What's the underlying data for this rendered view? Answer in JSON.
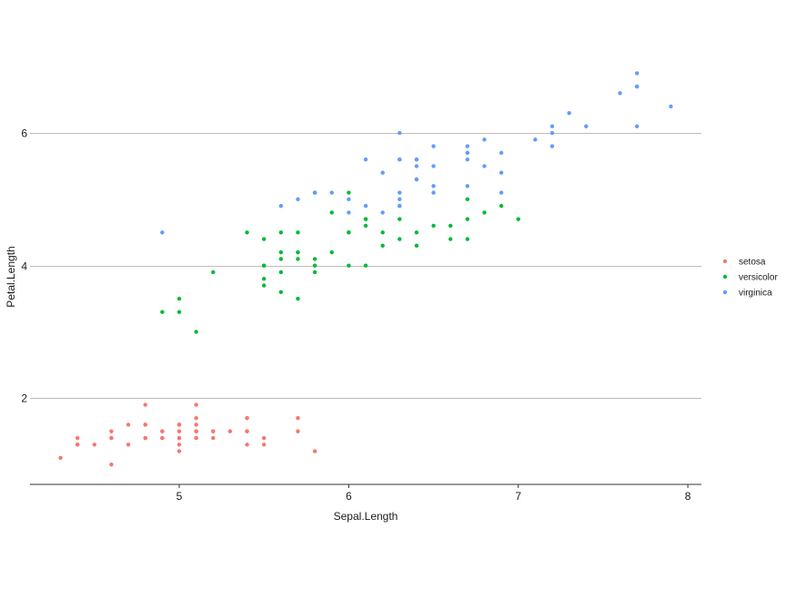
{
  "chart_data": {
    "type": "scatter",
    "xlabel": "Sepal.Length",
    "ylabel": "Petal.Length",
    "xlim": [
      4.12,
      8.08
    ],
    "ylim": [
      0.7,
      7.25
    ],
    "xticks": [
      5,
      6,
      7,
      8
    ],
    "yticks": [
      2,
      4,
      6
    ],
    "grid": "horizontal-major",
    "legend_position": "right",
    "series": [
      {
        "name": "setosa",
        "color": "#F8766D",
        "points": [
          [
            5.1,
            1.4
          ],
          [
            4.9,
            1.4
          ],
          [
            4.7,
            1.3
          ],
          [
            4.6,
            1.5
          ],
          [
            5.0,
            1.4
          ],
          [
            5.4,
            1.7
          ],
          [
            4.6,
            1.4
          ],
          [
            5.0,
            1.5
          ],
          [
            4.4,
            1.4
          ],
          [
            4.9,
            1.5
          ],
          [
            5.4,
            1.5
          ],
          [
            4.8,
            1.6
          ],
          [
            4.8,
            1.4
          ],
          [
            4.3,
            1.1
          ],
          [
            5.8,
            1.2
          ],
          [
            5.7,
            1.5
          ],
          [
            5.4,
            1.3
          ],
          [
            5.1,
            1.4
          ],
          [
            5.7,
            1.7
          ],
          [
            5.1,
            1.5
          ],
          [
            5.4,
            1.7
          ],
          [
            5.1,
            1.5
          ],
          [
            4.6,
            1.0
          ],
          [
            5.1,
            1.7
          ],
          [
            4.8,
            1.9
          ],
          [
            5.0,
            1.6
          ],
          [
            5.0,
            1.6
          ],
          [
            5.2,
            1.5
          ],
          [
            5.2,
            1.4
          ],
          [
            4.7,
            1.6
          ],
          [
            4.8,
            1.6
          ],
          [
            5.4,
            1.5
          ],
          [
            5.2,
            1.5
          ],
          [
            5.5,
            1.4
          ],
          [
            4.9,
            1.5
          ],
          [
            5.0,
            1.2
          ],
          [
            5.5,
            1.3
          ],
          [
            4.9,
            1.4
          ],
          [
            4.4,
            1.3
          ],
          [
            5.1,
            1.5
          ],
          [
            5.0,
            1.3
          ],
          [
            4.5,
            1.3
          ],
          [
            4.4,
            1.3
          ],
          [
            5.0,
            1.6
          ],
          [
            5.1,
            1.9
          ],
          [
            4.8,
            1.4
          ],
          [
            5.1,
            1.6
          ],
          [
            4.6,
            1.4
          ],
          [
            5.3,
            1.5
          ],
          [
            5.0,
            1.4
          ]
        ]
      },
      {
        "name": "versicolor",
        "color": "#00BA38",
        "points": [
          [
            7.0,
            4.7
          ],
          [
            6.4,
            4.5
          ],
          [
            6.9,
            4.9
          ],
          [
            5.5,
            4.0
          ],
          [
            6.5,
            4.6
          ],
          [
            5.7,
            4.5
          ],
          [
            6.3,
            4.7
          ],
          [
            4.9,
            3.3
          ],
          [
            6.6,
            4.6
          ],
          [
            5.2,
            3.9
          ],
          [
            5.0,
            3.5
          ],
          [
            5.9,
            4.2
          ],
          [
            6.0,
            4.0
          ],
          [
            6.1,
            4.7
          ],
          [
            5.6,
            3.6
          ],
          [
            6.7,
            4.4
          ],
          [
            5.6,
            4.5
          ],
          [
            5.8,
            4.1
          ],
          [
            6.2,
            4.5
          ],
          [
            5.6,
            3.9
          ],
          [
            5.9,
            4.8
          ],
          [
            6.1,
            4.0
          ],
          [
            6.3,
            4.9
          ],
          [
            6.1,
            4.7
          ],
          [
            6.4,
            4.3
          ],
          [
            6.6,
            4.4
          ],
          [
            6.8,
            4.8
          ],
          [
            6.7,
            5.0
          ],
          [
            6.0,
            4.5
          ],
          [
            5.7,
            3.5
          ],
          [
            5.5,
            3.8
          ],
          [
            5.5,
            3.7
          ],
          [
            5.8,
            3.9
          ],
          [
            6.0,
            5.1
          ],
          [
            5.4,
            4.5
          ],
          [
            6.0,
            4.5
          ],
          [
            6.7,
            4.7
          ],
          [
            6.3,
            4.4
          ],
          [
            5.6,
            4.1
          ],
          [
            5.5,
            4.0
          ],
          [
            5.5,
            4.4
          ],
          [
            6.1,
            4.6
          ],
          [
            5.8,
            4.0
          ],
          [
            5.0,
            3.3
          ],
          [
            5.6,
            4.2
          ],
          [
            5.7,
            4.2
          ],
          [
            5.7,
            4.2
          ],
          [
            6.2,
            4.3
          ],
          [
            5.1,
            3.0
          ],
          [
            5.7,
            4.1
          ]
        ]
      },
      {
        "name": "virginica",
        "color": "#619CFF",
        "points": [
          [
            6.3,
            6.0
          ],
          [
            5.8,
            5.1
          ],
          [
            7.1,
            5.9
          ],
          [
            6.3,
            5.6
          ],
          [
            6.5,
            5.8
          ],
          [
            7.6,
            6.6
          ],
          [
            4.9,
            4.5
          ],
          [
            7.3,
            6.3
          ],
          [
            6.7,
            5.8
          ],
          [
            7.2,
            6.1
          ],
          [
            6.5,
            5.1
          ],
          [
            6.4,
            5.3
          ],
          [
            6.8,
            5.5
          ],
          [
            5.7,
            5.0
          ],
          [
            5.8,
            5.1
          ],
          [
            6.4,
            5.3
          ],
          [
            6.5,
            5.5
          ],
          [
            7.7,
            6.7
          ],
          [
            7.7,
            6.9
          ],
          [
            6.0,
            5.0
          ],
          [
            6.9,
            5.7
          ],
          [
            5.6,
            4.9
          ],
          [
            7.7,
            6.7
          ],
          [
            6.3,
            4.9
          ],
          [
            6.7,
            5.7
          ],
          [
            7.2,
            6.0
          ],
          [
            6.2,
            4.8
          ],
          [
            6.1,
            4.9
          ],
          [
            6.4,
            5.6
          ],
          [
            7.2,
            5.8
          ],
          [
            7.4,
            6.1
          ],
          [
            7.9,
            6.4
          ],
          [
            6.4,
            5.6
          ],
          [
            6.3,
            5.1
          ],
          [
            6.1,
            5.6
          ],
          [
            7.7,
            6.1
          ],
          [
            6.3,
            5.6
          ],
          [
            6.4,
            5.5
          ],
          [
            6.0,
            4.8
          ],
          [
            6.9,
            5.4
          ],
          [
            6.7,
            5.6
          ],
          [
            6.9,
            5.1
          ],
          [
            5.8,
            5.1
          ],
          [
            6.8,
            5.9
          ],
          [
            6.7,
            5.7
          ],
          [
            6.7,
            5.2
          ],
          [
            6.3,
            5.0
          ],
          [
            6.5,
            5.2
          ],
          [
            6.2,
            5.4
          ],
          [
            5.9,
            5.1
          ]
        ]
      }
    ]
  }
}
